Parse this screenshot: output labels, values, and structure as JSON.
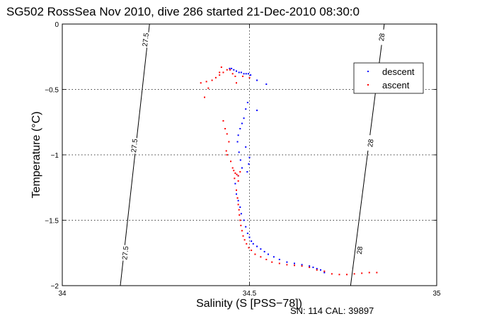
{
  "chart_data": {
    "type": "scatter",
    "title": "SG502 RossSea Nov 2010, dive 286 started 21-Dec-2010 08:30:0",
    "xlabel": "Salinity (S [PSS−78])",
    "ylabel": "Temperature (°C)",
    "xlim": [
      34,
      35
    ],
    "ylim": [
      -2,
      0
    ],
    "xticks": [
      34,
      34.5,
      35
    ],
    "xtick_labels": [
      "34",
      "34.5",
      "35"
    ],
    "yticks": [
      0,
      -0.5,
      -1,
      -1.5,
      -2
    ],
    "ytick_labels": [
      "0",
      "−0.5",
      "−1",
      "−1.5",
      "−2"
    ],
    "grid": true,
    "legend_position": "top-right",
    "footer": "SN: 114  CAL: 39897",
    "isopycnals": [
      {
        "label": "27.5",
        "points": [
          [
            34.233,
            0.0
          ],
          [
            34.155,
            -2.0
          ]
        ],
        "label_positions": [
          [
            34.222,
            -0.12
          ],
          [
            34.192,
            -0.93
          ],
          [
            34.168,
            -1.75
          ]
        ]
      },
      {
        "label": "28",
        "points": [
          [
            34.86,
            0.0
          ],
          [
            34.77,
            -2.0
          ]
        ],
        "label_positions": [
          [
            34.853,
            -0.1
          ],
          [
            34.823,
            -0.91
          ],
          [
            34.794,
            -1.73
          ]
        ]
      }
    ],
    "series": [
      {
        "name": "descent",
        "color": "#0000ff",
        "points": [
          [
            34.447,
            -0.34
          ],
          [
            34.452,
            -0.34
          ],
          [
            34.458,
            -0.35
          ],
          [
            34.465,
            -0.36
          ],
          [
            34.472,
            -0.37
          ],
          [
            34.478,
            -0.37
          ],
          [
            34.485,
            -0.38
          ],
          [
            34.491,
            -0.38
          ],
          [
            34.497,
            -0.38
          ],
          [
            34.503,
            -0.39
          ],
          [
            34.52,
            -0.43
          ],
          [
            34.545,
            -0.46
          ],
          [
            34.495,
            -0.6
          ],
          [
            34.49,
            -0.65
          ],
          [
            34.52,
            -0.66
          ],
          [
            34.485,
            -0.72
          ],
          [
            34.48,
            -0.76
          ],
          [
            34.475,
            -0.8
          ],
          [
            34.47,
            -0.85
          ],
          [
            34.468,
            -0.9
          ],
          [
            34.49,
            -0.94
          ],
          [
            34.472,
            -0.98
          ],
          [
            34.5,
            -1.02
          ],
          [
            34.476,
            -1.04
          ],
          [
            34.498,
            -1.07
          ],
          [
            34.48,
            -1.1
          ],
          [
            34.494,
            -1.13
          ],
          [
            34.47,
            -1.16
          ],
          [
            34.462,
            -1.22
          ],
          [
            34.465,
            -1.3
          ],
          [
            34.47,
            -1.35
          ],
          [
            34.475,
            -1.4
          ],
          [
            34.478,
            -1.45
          ],
          [
            34.485,
            -1.5
          ],
          [
            34.49,
            -1.55
          ],
          [
            34.495,
            -1.6
          ],
          [
            34.5,
            -1.63
          ],
          [
            34.505,
            -1.66
          ],
          [
            34.51,
            -1.68
          ],
          [
            34.52,
            -1.7
          ],
          [
            34.53,
            -1.72
          ],
          [
            34.54,
            -1.74
          ],
          [
            34.55,
            -1.76
          ],
          [
            34.565,
            -1.78
          ],
          [
            34.58,
            -1.8
          ],
          [
            34.6,
            -1.82
          ],
          [
            34.62,
            -1.83
          ],
          [
            34.64,
            -1.84
          ],
          [
            34.66,
            -1.85
          ],
          [
            34.67,
            -1.86
          ],
          [
            34.68,
            -1.87
          ],
          [
            34.69,
            -1.88
          ],
          [
            34.7,
            -1.9
          ]
        ]
      },
      {
        "name": "ascent",
        "color": "#ff0000",
        "points": [
          [
            34.425,
            -0.33
          ],
          [
            34.44,
            -0.35
          ],
          [
            34.43,
            -0.37
          ],
          [
            34.42,
            -0.39
          ],
          [
            34.41,
            -0.41
          ],
          [
            34.4,
            -0.43
          ],
          [
            34.385,
            -0.44
          ],
          [
            34.37,
            -0.45
          ],
          [
            34.39,
            -0.49
          ],
          [
            34.38,
            -0.56
          ],
          [
            34.42,
            -0.37
          ],
          [
            34.448,
            -0.35
          ],
          [
            34.455,
            -0.38
          ],
          [
            34.462,
            -0.4
          ],
          [
            34.482,
            -0.4
          ],
          [
            34.5,
            -0.41
          ],
          [
            34.465,
            -0.45
          ],
          [
            34.43,
            -0.74
          ],
          [
            34.435,
            -0.8
          ],
          [
            34.44,
            -0.84
          ],
          [
            34.445,
            -0.9
          ],
          [
            34.438,
            -0.97
          ],
          [
            34.44,
            -1.0
          ],
          [
            34.45,
            -1.05
          ],
          [
            34.455,
            -1.1
          ],
          [
            34.458,
            -1.12
          ],
          [
            34.462,
            -1.14
          ],
          [
            34.466,
            -1.15
          ],
          [
            34.47,
            -1.16
          ],
          [
            34.475,
            -1.13
          ],
          [
            34.46,
            -1.18
          ],
          [
            34.47,
            -1.2
          ],
          [
            34.465,
            -1.27
          ],
          [
            34.468,
            -1.33
          ],
          [
            34.47,
            -1.38
          ],
          [
            34.472,
            -1.42
          ],
          [
            34.473,
            -1.46
          ],
          [
            34.475,
            -1.5
          ],
          [
            34.477,
            -1.54
          ],
          [
            34.48,
            -1.58
          ],
          [
            34.483,
            -1.62
          ],
          [
            34.487,
            -1.65
          ],
          [
            34.492,
            -1.68
          ],
          [
            34.498,
            -1.71
          ],
          [
            34.505,
            -1.73
          ],
          [
            34.515,
            -1.76
          ],
          [
            34.53,
            -1.78
          ],
          [
            34.545,
            -1.8
          ],
          [
            34.56,
            -1.82
          ],
          [
            34.58,
            -1.83
          ],
          [
            34.6,
            -1.84
          ],
          [
            34.62,
            -1.845
          ],
          [
            34.64,
            -1.85
          ],
          [
            34.66,
            -1.86
          ],
          [
            34.68,
            -1.88
          ],
          [
            34.7,
            -1.89
          ],
          [
            34.72,
            -1.91
          ],
          [
            34.74,
            -1.915
          ],
          [
            34.76,
            -1.915
          ],
          [
            34.78,
            -1.91
          ],
          [
            34.8,
            -1.905
          ],
          [
            34.82,
            -1.9
          ],
          [
            34.84,
            -1.9
          ]
        ]
      }
    ]
  }
}
